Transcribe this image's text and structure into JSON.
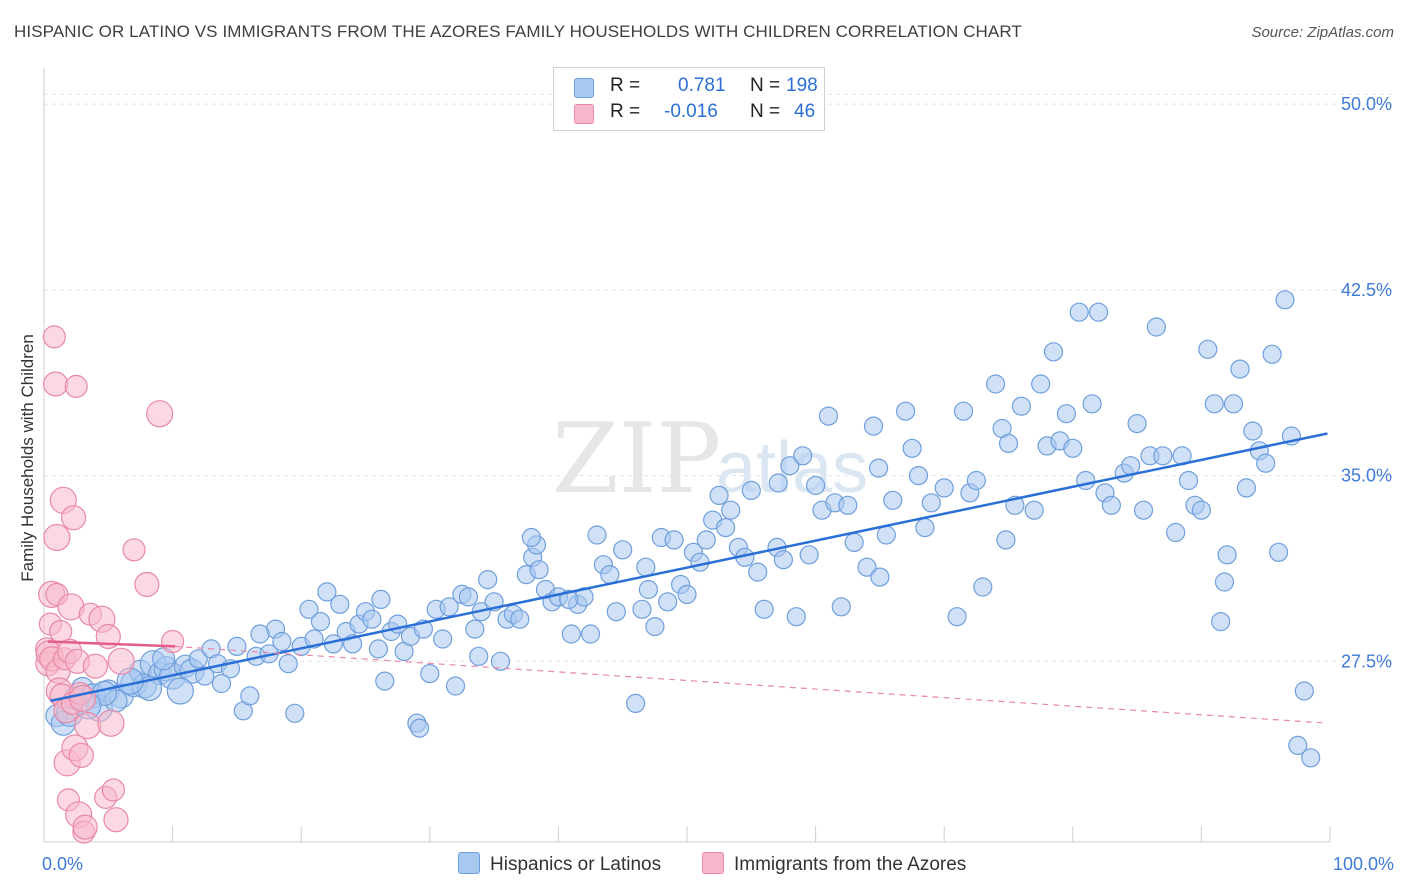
{
  "title": "HISPANIC OR LATINO VS IMMIGRANTS FROM THE AZORES FAMILY HOUSEHOLDS WITH CHILDREN CORRELATION CHART",
  "source": "Source: ZipAtlas.com",
  "watermark": {
    "zip": "ZIP",
    "atlas": "atlas"
  },
  "legend": {
    "rows": [
      {
        "r_label": "R =",
        "r_value": "0.781",
        "n_label": "N =",
        "n_value": "198",
        "color": "#a9c8f0",
        "border": "#6f9fdc"
      },
      {
        "r_label": "R =",
        "r_value": "-0.016",
        "n_label": "N =",
        "n_value": "46",
        "color": "#f7b8cb",
        "border": "#e889a8"
      }
    ]
  },
  "bottom_legend": [
    {
      "label": "Hispanics or Latinos",
      "color": "#a9c8f0",
      "border": "#6f9fdc"
    },
    {
      "label": "Immigrants from the Azores",
      "color": "#f7b8cb",
      "border": "#e889a8"
    }
  ],
  "chart_data": {
    "type": "scatter",
    "title": "HISPANIC OR LATINO VS IMMIGRANTS FROM THE AZORES FAMILY HOUSEHOLDS WITH CHILDREN CORRELATION CHART",
    "xlabel": "",
    "ylabel": "Family Households with Children",
    "xlim": [
      0,
      100
    ],
    "ylim": [
      20.2,
      51.3
    ],
    "x_tick_labels": [
      "0.0%",
      "100.0%"
    ],
    "y_ticks": [
      27.5,
      35.0,
      42.5,
      50.0
    ],
    "y_tick_labels": [
      "27.5%",
      "35.0%",
      "42.5%",
      "50.0%"
    ],
    "grid": true,
    "legend_position": "top-center",
    "series": [
      {
        "name": "Hispanics or Latinos",
        "color": "#6f9fdc",
        "fill": "#a9c8f0",
        "trend": {
          "x": [
            0.5,
            99.8
          ],
          "y": [
            25.9,
            36.7
          ],
          "color": "#2a6fd6"
        },
        "points": [
          [
            1.0,
            25.3
          ],
          [
            1.5,
            25.0
          ],
          [
            2.0,
            25.4
          ],
          [
            3.0,
            26.4
          ],
          [
            3.8,
            26.1
          ],
          [
            4.3,
            25.6
          ],
          [
            5.0,
            26.3
          ],
          [
            6.0,
            26.1
          ],
          [
            7.0,
            26.6
          ],
          [
            7.5,
            27.1
          ],
          [
            7.8,
            26.5
          ],
          [
            8.5,
            27.4
          ],
          [
            9.0,
            27.0
          ],
          [
            9.5,
            27.2
          ],
          [
            10.0,
            26.9
          ],
          [
            11.0,
            27.3
          ],
          [
            11.5,
            27.1
          ],
          [
            12.0,
            27.6
          ],
          [
            12.5,
            26.9
          ],
          [
            13.0,
            28.0
          ],
          [
            13.5,
            27.4
          ],
          [
            14.5,
            27.2
          ],
          [
            15.0,
            28.1
          ],
          [
            15.5,
            25.5
          ],
          [
            16.0,
            26.1
          ],
          [
            16.5,
            27.7
          ],
          [
            17.5,
            27.8
          ],
          [
            18.0,
            28.8
          ],
          [
            18.5,
            28.3
          ],
          [
            19.0,
            27.4
          ],
          [
            19.5,
            25.4
          ],
          [
            20.0,
            28.1
          ],
          [
            21.0,
            28.4
          ],
          [
            21.5,
            29.1
          ],
          [
            22.0,
            30.3
          ],
          [
            22.5,
            28.2
          ],
          [
            23.0,
            29.8
          ],
          [
            23.5,
            28.7
          ],
          [
            24.0,
            28.2
          ],
          [
            24.5,
            29.0
          ],
          [
            25.0,
            29.5
          ],
          [
            25.5,
            29.2
          ],
          [
            26.0,
            28.0
          ],
          [
            26.5,
            26.7
          ],
          [
            27.0,
            28.7
          ],
          [
            27.5,
            29.0
          ],
          [
            28.0,
            27.9
          ],
          [
            28.5,
            28.5
          ],
          [
            29.0,
            25.0
          ],
          [
            29.2,
            24.8
          ],
          [
            29.5,
            28.8
          ],
          [
            30.0,
            27.0
          ],
          [
            30.5,
            29.6
          ],
          [
            31.0,
            28.4
          ],
          [
            31.5,
            29.7
          ],
          [
            32.0,
            26.5
          ],
          [
            32.5,
            30.2
          ],
          [
            33.0,
            30.1
          ],
          [
            33.5,
            28.8
          ],
          [
            34.0,
            29.5
          ],
          [
            34.5,
            30.8
          ],
          [
            35.0,
            29.9
          ],
          [
            35.5,
            27.5
          ],
          [
            36.0,
            29.2
          ],
          [
            36.5,
            29.4
          ],
          [
            37.0,
            29.2
          ],
          [
            37.5,
            31.0
          ],
          [
            38.0,
            31.7
          ],
          [
            38.3,
            32.2
          ],
          [
            38.5,
            31.2
          ],
          [
            39.0,
            30.4
          ],
          [
            39.5,
            29.9
          ],
          [
            40.0,
            30.1
          ],
          [
            41.0,
            28.6
          ],
          [
            41.5,
            29.8
          ],
          [
            42.0,
            30.1
          ],
          [
            42.5,
            28.6
          ],
          [
            43.0,
            32.6
          ],
          [
            43.5,
            31.4
          ],
          [
            44.0,
            31.0
          ],
          [
            44.5,
            29.5
          ],
          [
            45.0,
            32.0
          ],
          [
            46.0,
            25.8
          ],
          [
            46.5,
            29.6
          ],
          [
            47.0,
            30.4
          ],
          [
            47.5,
            28.9
          ],
          [
            48.0,
            32.5
          ],
          [
            48.5,
            29.9
          ],
          [
            49.0,
            32.4
          ],
          [
            49.5,
            30.6
          ],
          [
            50.0,
            30.2
          ],
          [
            50.5,
            31.9
          ],
          [
            51.0,
            31.5
          ],
          [
            51.5,
            32.4
          ],
          [
            52.0,
            33.2
          ],
          [
            52.5,
            34.2
          ],
          [
            53.0,
            32.9
          ],
          [
            54.0,
            32.1
          ],
          [
            54.5,
            31.7
          ],
          [
            55.0,
            34.4
          ],
          [
            55.5,
            31.1
          ],
          [
            56.0,
            29.6
          ],
          [
            57.0,
            32.1
          ],
          [
            57.5,
            31.6
          ],
          [
            58.0,
            35.4
          ],
          [
            58.5,
            29.3
          ],
          [
            59.0,
            35.8
          ],
          [
            59.5,
            31.8
          ],
          [
            60.0,
            34.6
          ],
          [
            60.5,
            33.6
          ],
          [
            61.0,
            37.4
          ],
          [
            61.5,
            33.9
          ],
          [
            62.0,
            29.7
          ],
          [
            62.5,
            33.8
          ],
          [
            63.0,
            32.3
          ],
          [
            64.0,
            31.3
          ],
          [
            64.5,
            37.0
          ],
          [
            65.0,
            30.9
          ],
          [
            65.5,
            32.6
          ],
          [
            66.0,
            34.0
          ],
          [
            67.0,
            37.6
          ],
          [
            67.5,
            36.1
          ],
          [
            68.0,
            35.0
          ],
          [
            68.5,
            32.9
          ],
          [
            69.0,
            33.9
          ],
          [
            70.0,
            34.5
          ],
          [
            71.0,
            29.3
          ],
          [
            71.5,
            37.6
          ],
          [
            72.0,
            34.3
          ],
          [
            72.5,
            34.8
          ],
          [
            73.0,
            30.5
          ],
          [
            74.0,
            38.7
          ],
          [
            74.5,
            36.9
          ],
          [
            75.0,
            36.3
          ],
          [
            75.5,
            33.8
          ],
          [
            76.0,
            37.8
          ],
          [
            77.0,
            33.6
          ],
          [
            77.5,
            38.7
          ],
          [
            78.0,
            36.2
          ],
          [
            78.5,
            40.0
          ],
          [
            79.0,
            36.4
          ],
          [
            79.5,
            37.5
          ],
          [
            80.0,
            36.1
          ],
          [
            80.5,
            41.6
          ],
          [
            81.0,
            34.8
          ],
          [
            81.5,
            37.9
          ],
          [
            82.0,
            41.6
          ],
          [
            82.5,
            34.3
          ],
          [
            83.0,
            33.8
          ],
          [
            84.0,
            35.1
          ],
          [
            84.5,
            35.4
          ],
          [
            85.0,
            37.1
          ],
          [
            85.5,
            33.6
          ],
          [
            86.0,
            35.8
          ],
          [
            86.5,
            41.0
          ],
          [
            87.0,
            35.8
          ],
          [
            88.0,
            32.7
          ],
          [
            88.5,
            35.8
          ],
          [
            89.0,
            34.8
          ],
          [
            89.5,
            33.8
          ],
          [
            90.0,
            33.6
          ],
          [
            90.5,
            40.1
          ],
          [
            91.0,
            37.9
          ],
          [
            91.5,
            29.1
          ],
          [
            92.0,
            31.8
          ],
          [
            92.5,
            37.9
          ],
          [
            93.0,
            39.3
          ],
          [
            93.5,
            34.5
          ],
          [
            94.0,
            36.8
          ],
          [
            94.5,
            36.0
          ],
          [
            95.0,
            35.5
          ],
          [
            95.5,
            39.9
          ],
          [
            96.0,
            31.9
          ],
          [
            96.5,
            42.1
          ],
          [
            97.0,
            36.6
          ],
          [
            97.5,
            24.1
          ],
          [
            98.0,
            26.3
          ],
          [
            98.5,
            23.6
          ],
          [
            91.8,
            30.7
          ],
          [
            74.8,
            32.4
          ],
          [
            64.9,
            35.3
          ],
          [
            57.1,
            34.7
          ],
          [
            53.4,
            33.6
          ],
          [
            46.8,
            31.3
          ],
          [
            40.8,
            30.0
          ],
          [
            37.9,
            32.5
          ],
          [
            33.8,
            27.7
          ],
          [
            26.2,
            30.0
          ],
          [
            20.6,
            29.6
          ],
          [
            16.8,
            28.6
          ],
          [
            13.8,
            26.6
          ],
          [
            10.6,
            26.3
          ],
          [
            9.3,
            27.6
          ],
          [
            8.2,
            26.4
          ],
          [
            6.7,
            26.7
          ],
          [
            5.6,
            25.9
          ],
          [
            4.7,
            26.2
          ],
          [
            3.4,
            25.7
          ],
          [
            2.4,
            26.0
          ]
        ]
      },
      {
        "name": "Immigrants from the Azores",
        "color": "#e889a8",
        "fill": "#f7b8cb",
        "trend": {
          "x": [
            0.3,
            10.2
          ],
          "y": [
            28.3,
            28.1
          ],
          "color": "#e35c8c"
        },
        "trend_ext": {
          "x": [
            10.2,
            99.8
          ],
          "y": [
            28.1,
            25.0
          ],
          "color": "#e889a8"
        },
        "points": [
          [
            0.2,
            28.0
          ],
          [
            0.3,
            27.4
          ],
          [
            0.4,
            27.8
          ],
          [
            0.5,
            29.0
          ],
          [
            0.6,
            27.6
          ],
          [
            0.6,
            30.2
          ],
          [
            0.8,
            40.6
          ],
          [
            0.9,
            38.7
          ],
          [
            1.0,
            32.5
          ],
          [
            1.0,
            30.2
          ],
          [
            1.1,
            27.1
          ],
          [
            1.2,
            26.3
          ],
          [
            1.3,
            28.7
          ],
          [
            1.4,
            26.1
          ],
          [
            1.5,
            34.0
          ],
          [
            1.6,
            27.6
          ],
          [
            1.7,
            25.5
          ],
          [
            1.8,
            23.4
          ],
          [
            1.9,
            21.9
          ],
          [
            2.0,
            27.9
          ],
          [
            2.1,
            29.7
          ],
          [
            2.2,
            25.8
          ],
          [
            2.3,
            33.3
          ],
          [
            2.4,
            24.0
          ],
          [
            2.5,
            38.6
          ],
          [
            2.6,
            27.5
          ],
          [
            2.7,
            21.3
          ],
          [
            2.8,
            26.2
          ],
          [
            2.9,
            23.7
          ],
          [
            3.0,
            26.0
          ],
          [
            3.1,
            20.6
          ],
          [
            3.2,
            20.8
          ],
          [
            3.4,
            24.9
          ],
          [
            3.6,
            29.4
          ],
          [
            4.0,
            27.3
          ],
          [
            4.5,
            29.2
          ],
          [
            4.8,
            22.0
          ],
          [
            5.0,
            28.5
          ],
          [
            5.2,
            25.0
          ],
          [
            5.4,
            22.3
          ],
          [
            5.6,
            21.1
          ],
          [
            6.0,
            27.5
          ],
          [
            7.0,
            32.0
          ],
          [
            8.0,
            30.6
          ],
          [
            9.0,
            37.5
          ],
          [
            10.0,
            28.3
          ]
        ]
      }
    ]
  }
}
